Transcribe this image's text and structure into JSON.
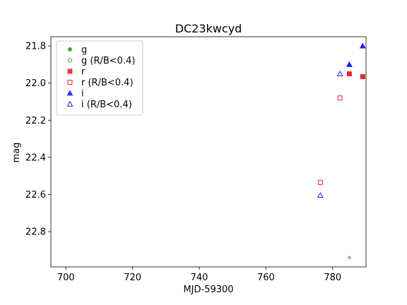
{
  "chart_data": {
    "type": "scatter",
    "title": "DC23kwcyd",
    "xlabel": "MJD-59300",
    "ylabel": "mag",
    "xlim": [
      695.5,
      790
    ],
    "ylim": [
      22.99,
      21.75
    ],
    "y_inverted": true,
    "grid": false,
    "legend_placement": "top-left",
    "x_ticks": [
      700,
      720,
      740,
      760,
      780
    ],
    "y_ticks": [
      21.8,
      22.0,
      22.2,
      22.4,
      22.6,
      22.8
    ],
    "x_tick_labels": [
      "700",
      "720",
      "740",
      "760",
      "780"
    ],
    "y_tick_labels": [
      "21.8",
      "22.0",
      "22.2",
      "22.4",
      "22.6",
      "22.8"
    ],
    "series": [
      {
        "name": "g",
        "color": "#2ca02c",
        "marker": "circle",
        "filled": true,
        "alpha": 0.45,
        "points": [
          {
            "x": 785.0,
            "y": 22.94
          }
        ]
      },
      {
        "name": "g (R/B<0.4)",
        "color": "#2ca02c",
        "marker": "circle",
        "filled": false,
        "points": []
      },
      {
        "name": "r",
        "color": "#e8262b",
        "marker": "square",
        "filled": true,
        "points": [
          {
            "x": 785.0,
            "y": 21.95
          },
          {
            "x": 789.0,
            "y": 21.965
          }
        ]
      },
      {
        "name": "r (R/B<0.4)",
        "color": "#e8262b",
        "marker": "square",
        "filled": false,
        "points": [
          {
            "x": 776.3,
            "y": 22.535
          },
          {
            "x": 782.2,
            "y": 22.08
          }
        ]
      },
      {
        "name": "i",
        "color": "#2020ee",
        "marker": "triangle",
        "filled": true,
        "points": [
          {
            "x": 785.0,
            "y": 21.9
          },
          {
            "x": 789.0,
            "y": 21.8
          }
        ]
      },
      {
        "name": "i (R/B<0.4)",
        "color": "#2020ee",
        "marker": "triangle",
        "filled": false,
        "points": [
          {
            "x": 776.3,
            "y": 22.605
          },
          {
            "x": 782.2,
            "y": 21.95
          }
        ]
      }
    ]
  }
}
